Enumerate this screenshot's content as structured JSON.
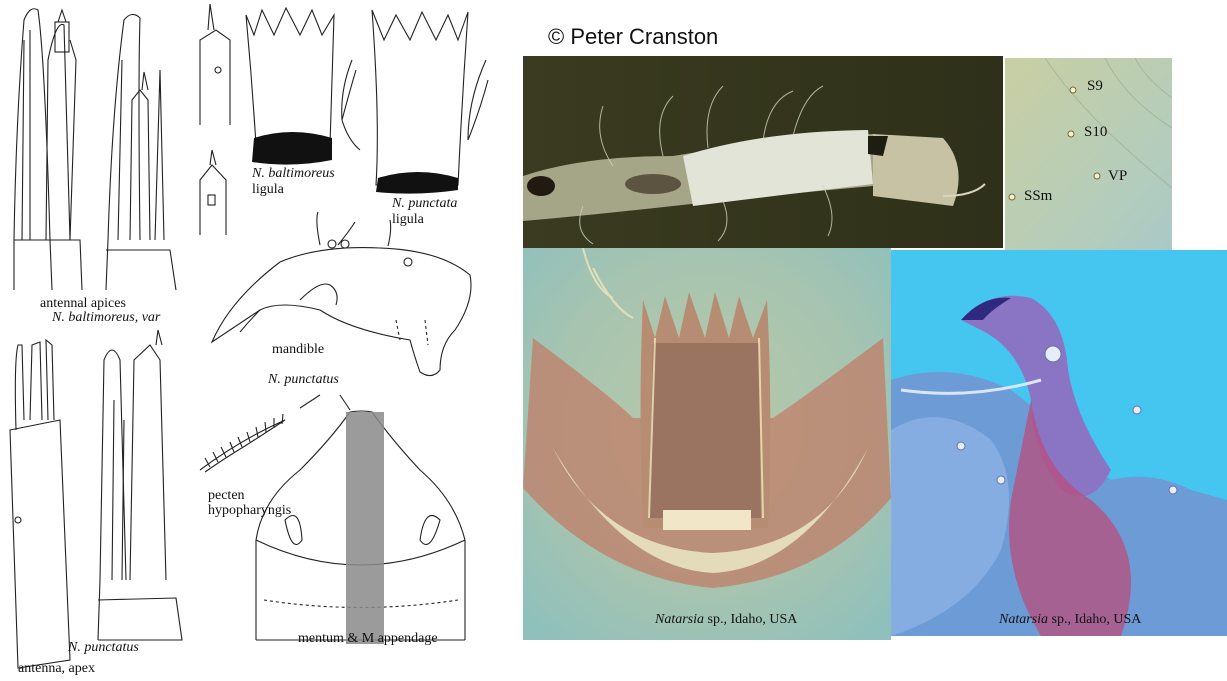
{
  "credit": "© Peter Cranston",
  "drawing_labels": {
    "antennal_apices": "antennal apices",
    "baltimoreus_var": "N. baltimoreus, var",
    "baltimoreus_ligula_species": "N. baltimoreus",
    "baltimoreus_ligula_word": "ligula",
    "punctata_ligula_species": "N. punctata",
    "punctata_ligula_word": "ligula",
    "mandible": "mandible",
    "punctatus_mandible": "N. punctatus",
    "pecten_1": "pecten",
    "pecten_2": "hypopharyngis",
    "punctatus_antenna": "N. punctatus",
    "antenna_apex": "antenna, apex",
    "mentum": "mentum & M appendage"
  },
  "photo_labels": {
    "s9": "S9",
    "s10": "S10",
    "vp": "VP",
    "ssm": "SSm"
  },
  "captions": {
    "ligula_genus": "Natarsia",
    "ligula_rest": " sp., Idaho, USA",
    "mandible_genus": "Natarsia",
    "mandible_rest": " sp., Idaho, USA"
  }
}
